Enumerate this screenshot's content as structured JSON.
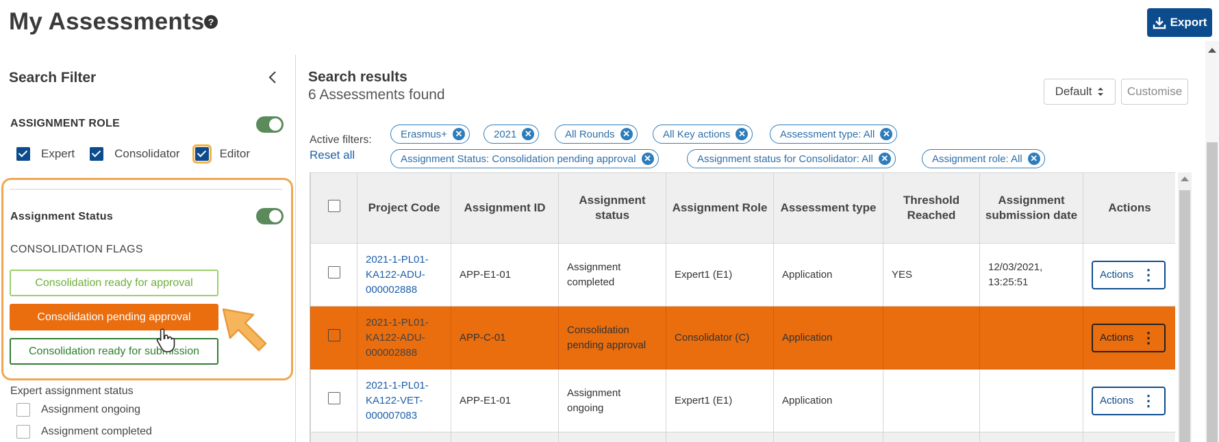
{
  "header": {
    "title": "My Assessments",
    "help_icon": "?",
    "export_label": "Export"
  },
  "sidebar": {
    "title": "Search Filter",
    "assignment_role": {
      "label": "ASSIGNMENT ROLE",
      "options": [
        {
          "label": "Expert",
          "checked": true
        },
        {
          "label": "Consolidator",
          "checked": true
        },
        {
          "label": "Editor",
          "checked": true
        }
      ]
    },
    "assignment_status": {
      "label": "Assignment Status",
      "flags_label": "CONSOLIDATION FLAGS",
      "flags": [
        {
          "label": "Consolidation ready for approval"
        },
        {
          "label": "Consolidation pending approval",
          "selected": true
        },
        {
          "label": "Consolidation ready for submission"
        }
      ]
    },
    "expert_status": {
      "label": "Expert assignment status",
      "options": [
        {
          "label": "Assignment ongoing"
        },
        {
          "label": "Assignment completed"
        }
      ]
    }
  },
  "results": {
    "title": "Search results",
    "count": "6 Assessments found",
    "sort_value": "Default",
    "customise_label": "Customise",
    "active_filters_label": "Active filters:",
    "reset_label": "Reset all",
    "chips": [
      "Erasmus+",
      "2021",
      "All Rounds",
      "All Key actions",
      "Assessment type: All",
      "Assignment Status: Consolidation pending approval",
      "Assignment status for Consolidator: All",
      "Assignment role: All"
    ],
    "columns": [
      "Project Code",
      "Assignment ID",
      "Assignment status",
      "Assignment Role",
      "Assessment type",
      "Threshold Reached",
      "Assignment submission date",
      "Actions"
    ],
    "rows": [
      {
        "project_code": "2021-1-PL01-KA122-ADU-000002888",
        "assignment_id": "APP-E1-01",
        "status": "Assignment completed",
        "role": "Expert1 (E1)",
        "type": "Application",
        "threshold": "YES",
        "date": "12/03/2021, 13:25:51",
        "action": "Actions"
      },
      {
        "project_code": "2021-1-PL01-KA122-ADU-000002888",
        "assignment_id": "APP-C-01",
        "status": "Consolidation pending approval",
        "role": "Consolidator (C)",
        "type": "Application",
        "threshold": "",
        "date": "",
        "action": "Actions"
      },
      {
        "project_code": "2021-1-PL01-KA122-VET-000007083",
        "assignment_id": "APP-E1-01",
        "status": "Assignment ongoing",
        "role": "Expert1 (E1)",
        "type": "Application",
        "threshold": "",
        "date": "",
        "action": "Actions"
      }
    ]
  },
  "colors": {
    "primary": "#0d4c8c",
    "highlight_orange": "#ea6d0e",
    "toggle_green": "#5b8a5b",
    "annotation_orange": "#f0a650"
  }
}
